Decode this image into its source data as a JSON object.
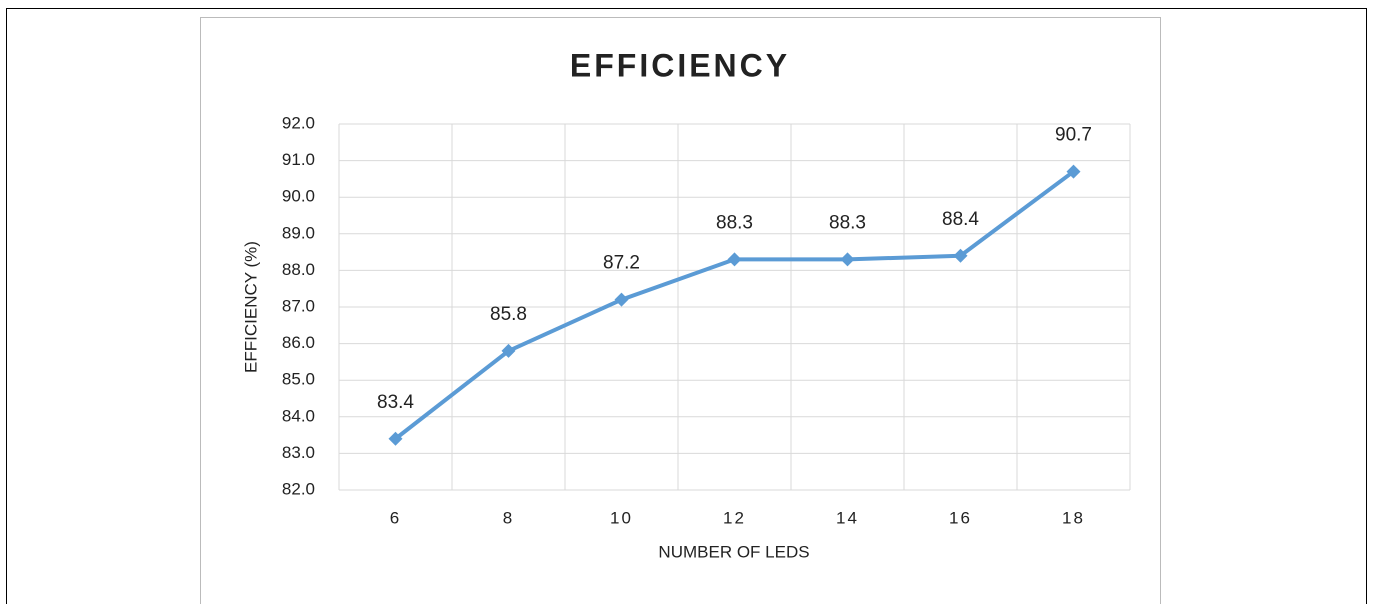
{
  "chart_data": {
    "type": "line",
    "title": "EFFICIENCY",
    "x_label": "NUMBER OF LEDS",
    "y_label": "EFFICIENCY (%)",
    "categories": [
      "6",
      "8",
      "10",
      "12",
      "14",
      "16",
      "18"
    ],
    "series": [
      {
        "name": "EFFICIENCY",
        "color": "#5b9bd5",
        "values": [
          83.4,
          85.8,
          87.2,
          88.3,
          88.3,
          88.4,
          90.7
        ]
      }
    ],
    "ylim": [
      82,
      92
    ],
    "yticks": [
      {
        "value": 82,
        "label": "82.0"
      },
      {
        "value": 83,
        "label": "83.0"
      },
      {
        "value": 84,
        "label": "84.0"
      },
      {
        "value": 85,
        "label": "85.0"
      },
      {
        "value": 86,
        "label": "86.0"
      },
      {
        "value": 87,
        "label": "87.0"
      },
      {
        "value": 88,
        "label": "88.0"
      },
      {
        "value": 89,
        "label": "89.0"
      },
      {
        "value": 90,
        "label": "90.0"
      },
      {
        "value": 91,
        "label": "91.0"
      },
      {
        "value": 92,
        "label": "92.0"
      }
    ],
    "grid": true
  }
}
